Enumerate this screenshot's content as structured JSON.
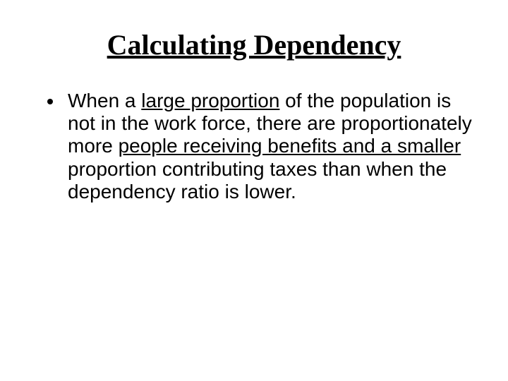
{
  "slide": {
    "title": "Calculating Dependency",
    "title_font_family": "Times New Roman",
    "title_font_size_pt": 40,
    "title_font_weight": "bold",
    "title_underline": true,
    "title_align": "center",
    "body_font_family": "Arial",
    "body_font_size_pt": 28,
    "background_color": "#ffffff",
    "text_color": "#000000",
    "bullet": {
      "seg1": "When a ",
      "seg2_underlined": "large proportion",
      "seg3": " of the population is not in the work force, there are proportionately more ",
      "seg4_underlined": "people receiving benefits and a smaller",
      "seg5": " proportion contributing taxes than when the dependency ratio is lower."
    }
  }
}
